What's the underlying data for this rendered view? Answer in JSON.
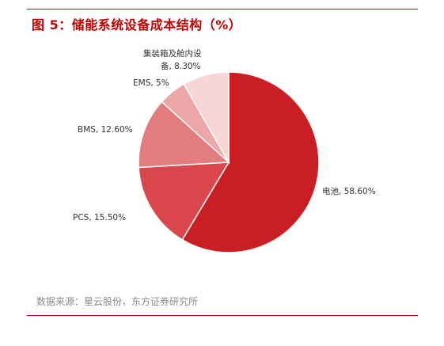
{
  "figure": {
    "title": "图 5：储能系统设备成本结构（%）",
    "source": "数据来源：星云股份，东方证券研究所"
  },
  "chart_data": {
    "type": "pie",
    "unit": "%",
    "slices": [
      {
        "label": "电池, 58.60%",
        "name": "电池",
        "value": 58.6,
        "color": "#c81e24"
      },
      {
        "label": "PCS, 15.50%",
        "name": "PCS",
        "value": 15.5,
        "color": "#d9464b"
      },
      {
        "label": "BMS, 12.60%",
        "name": "BMS",
        "value": 12.6,
        "color": "#e27c7f"
      },
      {
        "label": "EMS, 5%",
        "name": "EMS",
        "value": 5,
        "color": "#eda7a8"
      },
      {
        "label_lines": [
          "集装箱及舱内设",
          "备, 8.30%"
        ],
        "name": "集装箱及舱内设备",
        "value": 8.3,
        "color": "#f8d6d6"
      }
    ]
  }
}
